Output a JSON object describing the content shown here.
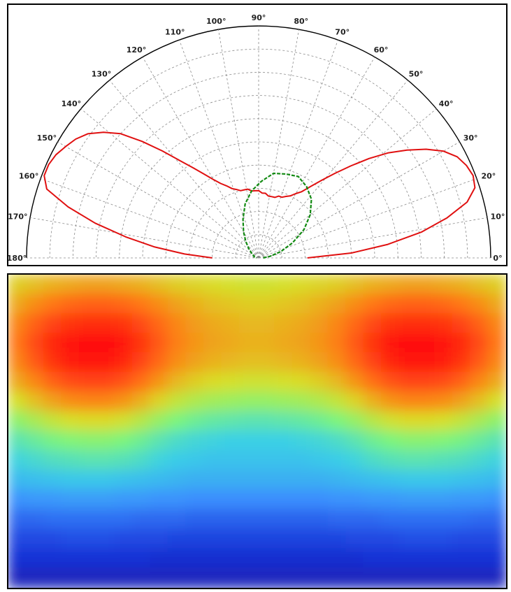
{
  "chart_data": [
    {
      "type": "polar",
      "title": "",
      "angle_ticks": [
        "0°",
        "10°",
        "20°",
        "30°",
        "40°",
        "50°",
        "60°",
        "70°",
        "80°",
        "90°",
        "100°",
        "110°",
        "120°",
        "130°",
        "140°",
        "150°",
        "160°",
        "170°",
        "180°"
      ],
      "angle_range_deg": [
        0,
        180
      ],
      "radial_rings": 10,
      "grid": true,
      "series": [
        {
          "color": "#e01010",
          "style": "solid",
          "theta_deg": [
            0,
            3,
            6,
            9,
            12,
            15,
            18,
            21,
            24,
            27,
            30,
            33,
            36,
            39,
            42,
            45,
            48,
            51,
            54,
            57,
            60,
            63,
            66,
            69,
            72,
            75,
            78,
            81,
            84,
            87,
            90,
            93,
            96,
            99,
            102,
            105,
            108,
            111,
            114,
            117,
            120,
            123,
            126,
            129,
            132,
            135,
            138,
            141,
            144,
            147,
            150,
            153,
            156,
            159,
            162,
            165,
            168,
            171,
            174,
            177,
            180
          ],
          "r": [
            0.21,
            0.4,
            0.56,
            0.71,
            0.83,
            0.93,
            0.98,
            0.99,
            0.98,
            0.96,
            0.92,
            0.86,
            0.79,
            0.72,
            0.64,
            0.56,
            0.49,
            0.43,
            0.38,
            0.34,
            0.32,
            0.3,
            0.29,
            0.28,
            0.28,
            0.27,
            0.27,
            0.27,
            0.28,
            0.28,
            0.29,
            0.29,
            0.29,
            0.3,
            0.3,
            0.3,
            0.31,
            0.32,
            0.34,
            0.36,
            0.39,
            0.43,
            0.48,
            0.54,
            0.62,
            0.71,
            0.8,
            0.86,
            0.91,
            0.94,
            0.96,
            0.98,
            0.99,
            0.99,
            0.96,
            0.85,
            0.72,
            0.58,
            0.45,
            0.32,
            0.2
          ]
        },
        {
          "color": "#128a12",
          "style": "dashed",
          "theta_deg": [
            0,
            8,
            16,
            24,
            32,
            40,
            48,
            56,
            64,
            72,
            80,
            88,
            96,
            104,
            112,
            120,
            128,
            136,
            144,
            152,
            160,
            170,
            180
          ],
          "r": [
            0.02,
            0.05,
            0.1,
            0.16,
            0.23,
            0.29,
            0.34,
            0.37,
            0.39,
            0.38,
            0.37,
            0.33,
            0.29,
            0.24,
            0.18,
            0.13,
            0.09,
            0.06,
            0.04,
            0.03,
            0.02,
            0.02,
            0.01
          ]
        }
      ]
    },
    {
      "type": "heatmap",
      "title": "",
      "colormap": [
        "#2a0a80",
        "#1733d8",
        "#3b8cff",
        "#3ad0e6",
        "#7cf57c",
        "#d8df27",
        "#ff7a14",
        "#ff1010"
      ],
      "rows": 16,
      "cols": 28,
      "values": [
        [
          0.74,
          0.76,
          0.78,
          0.79,
          0.8,
          0.8,
          0.79,
          0.78,
          0.76,
          0.74,
          0.73,
          0.72,
          0.71,
          0.7,
          0.7,
          0.71,
          0.72,
          0.73,
          0.74,
          0.76,
          0.78,
          0.79,
          0.8,
          0.8,
          0.79,
          0.78,
          0.76,
          0.74
        ],
        [
          0.79,
          0.83,
          0.86,
          0.88,
          0.89,
          0.89,
          0.88,
          0.86,
          0.83,
          0.8,
          0.78,
          0.76,
          0.75,
          0.74,
          0.74,
          0.75,
          0.76,
          0.78,
          0.8,
          0.83,
          0.86,
          0.88,
          0.89,
          0.89,
          0.88,
          0.86,
          0.83,
          0.79
        ],
        [
          0.84,
          0.89,
          0.93,
          0.95,
          0.96,
          0.96,
          0.95,
          0.92,
          0.88,
          0.84,
          0.81,
          0.79,
          0.78,
          0.77,
          0.77,
          0.78,
          0.79,
          0.81,
          0.84,
          0.88,
          0.92,
          0.95,
          0.96,
          0.96,
          0.95,
          0.93,
          0.89,
          0.84
        ],
        [
          0.86,
          0.92,
          0.97,
          0.99,
          1.0,
          1.0,
          0.99,
          0.95,
          0.9,
          0.85,
          0.82,
          0.8,
          0.79,
          0.78,
          0.78,
          0.79,
          0.8,
          0.82,
          0.85,
          0.9,
          0.95,
          0.99,
          1.0,
          1.0,
          0.99,
          0.97,
          0.92,
          0.86
        ],
        [
          0.84,
          0.9,
          0.95,
          0.98,
          0.99,
          0.99,
          0.97,
          0.93,
          0.88,
          0.83,
          0.8,
          0.78,
          0.77,
          0.76,
          0.76,
          0.77,
          0.78,
          0.8,
          0.83,
          0.88,
          0.93,
          0.97,
          0.99,
          0.99,
          0.98,
          0.95,
          0.9,
          0.84
        ],
        [
          0.79,
          0.84,
          0.89,
          0.92,
          0.93,
          0.93,
          0.91,
          0.87,
          0.82,
          0.77,
          0.74,
          0.72,
          0.71,
          0.7,
          0.7,
          0.71,
          0.72,
          0.74,
          0.77,
          0.82,
          0.87,
          0.91,
          0.93,
          0.93,
          0.92,
          0.89,
          0.84,
          0.79
        ],
        [
          0.71,
          0.76,
          0.8,
          0.83,
          0.84,
          0.84,
          0.82,
          0.78,
          0.73,
          0.68,
          0.65,
          0.63,
          0.62,
          0.61,
          0.61,
          0.62,
          0.63,
          0.65,
          0.68,
          0.73,
          0.78,
          0.82,
          0.84,
          0.84,
          0.83,
          0.8,
          0.76,
          0.71
        ],
        [
          0.6,
          0.64,
          0.68,
          0.71,
          0.72,
          0.72,
          0.7,
          0.66,
          0.61,
          0.57,
          0.54,
          0.52,
          0.51,
          0.5,
          0.5,
          0.51,
          0.52,
          0.54,
          0.57,
          0.61,
          0.66,
          0.7,
          0.72,
          0.72,
          0.71,
          0.68,
          0.64,
          0.6
        ],
        [
          0.5,
          0.53,
          0.56,
          0.58,
          0.59,
          0.59,
          0.57,
          0.54,
          0.5,
          0.47,
          0.45,
          0.44,
          0.43,
          0.43,
          0.43,
          0.43,
          0.44,
          0.45,
          0.47,
          0.5,
          0.54,
          0.57,
          0.59,
          0.59,
          0.58,
          0.56,
          0.53,
          0.5
        ],
        [
          0.44,
          0.46,
          0.48,
          0.49,
          0.5,
          0.5,
          0.49,
          0.47,
          0.44,
          0.42,
          0.41,
          0.4,
          0.4,
          0.4,
          0.4,
          0.4,
          0.4,
          0.41,
          0.42,
          0.44,
          0.47,
          0.49,
          0.5,
          0.5,
          0.49,
          0.48,
          0.46,
          0.44
        ],
        [
          0.38,
          0.39,
          0.4,
          0.41,
          0.41,
          0.41,
          0.4,
          0.39,
          0.38,
          0.37,
          0.36,
          0.36,
          0.36,
          0.36,
          0.36,
          0.36,
          0.36,
          0.36,
          0.37,
          0.38,
          0.39,
          0.4,
          0.41,
          0.41,
          0.41,
          0.4,
          0.39,
          0.38
        ],
        [
          0.3,
          0.31,
          0.31,
          0.32,
          0.32,
          0.32,
          0.31,
          0.31,
          0.3,
          0.3,
          0.29,
          0.29,
          0.29,
          0.29,
          0.29,
          0.29,
          0.29,
          0.29,
          0.3,
          0.3,
          0.31,
          0.31,
          0.32,
          0.32,
          0.32,
          0.31,
          0.31,
          0.3
        ],
        [
          0.23,
          0.23,
          0.24,
          0.24,
          0.24,
          0.24,
          0.24,
          0.23,
          0.23,
          0.23,
          0.22,
          0.22,
          0.22,
          0.22,
          0.22,
          0.22,
          0.22,
          0.22,
          0.23,
          0.23,
          0.23,
          0.24,
          0.24,
          0.24,
          0.24,
          0.24,
          0.23,
          0.23
        ],
        [
          0.18,
          0.18,
          0.18,
          0.19,
          0.19,
          0.19,
          0.18,
          0.18,
          0.18,
          0.17,
          0.17,
          0.17,
          0.17,
          0.17,
          0.17,
          0.17,
          0.17,
          0.17,
          0.17,
          0.18,
          0.18,
          0.18,
          0.19,
          0.19,
          0.19,
          0.18,
          0.18,
          0.18
        ],
        [
          0.14,
          0.14,
          0.14,
          0.14,
          0.14,
          0.14,
          0.14,
          0.14,
          0.13,
          0.13,
          0.13,
          0.13,
          0.13,
          0.13,
          0.13,
          0.13,
          0.13,
          0.13,
          0.13,
          0.13,
          0.14,
          0.14,
          0.14,
          0.14,
          0.14,
          0.14,
          0.14,
          0.14
        ],
        [
          0.1,
          0.1,
          0.1,
          0.1,
          0.1,
          0.1,
          0.1,
          0.1,
          0.1,
          0.1,
          0.1,
          0.1,
          0.1,
          0.1,
          0.1,
          0.1,
          0.1,
          0.1,
          0.1,
          0.1,
          0.1,
          0.1,
          0.1,
          0.1,
          0.1,
          0.1,
          0.1,
          0.1
        ]
      ]
    }
  ]
}
